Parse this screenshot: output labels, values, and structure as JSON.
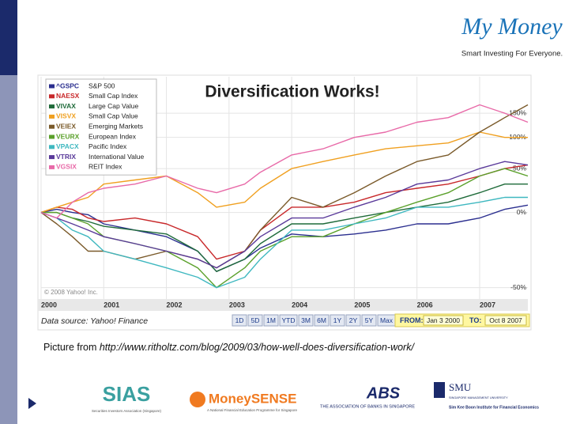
{
  "branding": {
    "logo": "My Money",
    "tagline": "Smart Investing For Everyone."
  },
  "chart_data": {
    "type": "line",
    "title": "Diversification Works!",
    "copyright": "© 2008 Yahoo! Inc.",
    "source": "Data source: Yahoo! Finance",
    "log_scale": true,
    "grid": true,
    "legend": "upper left",
    "x": [
      2000,
      2000.25,
      2000.5,
      2000.75,
      2001,
      2001.5,
      2002,
      2002.5,
      2002.8,
      2003.25,
      2003.5,
      2004,
      2004.5,
      2005,
      2005.5,
      2006,
      2006.5,
      2007,
      2007.4,
      2007.77
    ],
    "xlim": [
      2000,
      2007.77
    ],
    "xticks": [
      2000,
      2001,
      2002,
      2003,
      2004,
      2005,
      2006,
      2007
    ],
    "ylim": [
      -55,
      250
    ],
    "yticks": [
      {
        "value": -50,
        "label": "-50%"
      },
      {
        "value": 0,
        "label": "0%"
      },
      {
        "value": 50,
        "label": "50%"
      },
      {
        "value": 100,
        "label": "100%"
      },
      {
        "value": 150,
        "label": "150%"
      }
    ],
    "series": [
      {
        "ticker": "^GSPC",
        "name": "S&P 500",
        "color": "#2b2f8f",
        "values": [
          0,
          3,
          0,
          -2,
          -10,
          -15,
          -20,
          -30,
          -42,
          -35,
          -28,
          -18,
          -20,
          -18,
          -15,
          -10,
          -10,
          -5,
          3,
          7
        ]
      },
      {
        "ticker": "NAESX",
        "name": "Small Cap Index",
        "color": "#c8282a",
        "values": [
          0,
          5,
          3,
          -5,
          -8,
          -5,
          -10,
          -20,
          -35,
          -30,
          -15,
          5,
          5,
          10,
          20,
          25,
          30,
          40,
          50,
          55
        ]
      },
      {
        "ticker": "VIVAX",
        "name": "Large Cap Value",
        "color": "#1f6b3a",
        "values": [
          0,
          0,
          -5,
          -8,
          -12,
          -15,
          -18,
          -30,
          -42,
          -35,
          -25,
          -10,
          -10,
          -5,
          0,
          5,
          10,
          20,
          30,
          30
        ]
      },
      {
        "ticker": "VISVX",
        "name": "Small Cap Value",
        "color": "#f0a020",
        "values": [
          0,
          5,
          10,
          15,
          30,
          35,
          40,
          20,
          5,
          10,
          25,
          50,
          60,
          70,
          80,
          85,
          90,
          110,
          100,
          100
        ]
      },
      {
        "ticker": "VEIEX",
        "name": "Emerging Markets",
        "color": "#7a5a2a",
        "values": [
          0,
          -10,
          -20,
          -30,
          -30,
          -35,
          -30,
          -35,
          -40,
          -30,
          -15,
          15,
          5,
          20,
          40,
          60,
          70,
          110,
          140,
          170
        ]
      },
      {
        "ticker": "VEURX",
        "name": "European Index",
        "color": "#5aa02a",
        "values": [
          0,
          0,
          -5,
          -10,
          -20,
          -25,
          -30,
          -40,
          -50,
          -40,
          -30,
          -20,
          -20,
          -10,
          0,
          10,
          20,
          40,
          50,
          40
        ]
      },
      {
        "ticker": "VPACX",
        "name": "Pacific Index",
        "color": "#3fb8c0",
        "values": [
          0,
          -5,
          -15,
          -20,
          -30,
          -35,
          -40,
          -45,
          -50,
          -45,
          -35,
          -15,
          -15,
          -10,
          -5,
          5,
          5,
          10,
          15,
          15
        ]
      },
      {
        "ticker": "VTRIX",
        "name": "International Value",
        "color": "#5a3a9a",
        "values": [
          0,
          -5,
          -10,
          -15,
          -20,
          -25,
          -30,
          -35,
          -40,
          -30,
          -20,
          -5,
          -5,
          5,
          15,
          30,
          35,
          50,
          60,
          55
        ]
      },
      {
        "ticker": "VGSIX",
        "name": "REIT Index",
        "color": "#e86aa8",
        "values": [
          0,
          -5,
          10,
          20,
          25,
          30,
          40,
          25,
          20,
          30,
          45,
          70,
          80,
          100,
          110,
          130,
          140,
          170,
          150,
          130
        ]
      }
    ],
    "ranges": [
      "1D",
      "5D",
      "1M",
      "YTD",
      "3M",
      "6M",
      "1Y",
      "2Y",
      "5Y",
      "Max"
    ],
    "from_label": "FROM:",
    "from_date": "Jan 3 2000",
    "to_label": "TO:",
    "to_date": "Oct 8 2007"
  },
  "caption": {
    "prefix": "Picture from ",
    "url": "http://www.ritholtz.com/blog/2009/03/how-well-does-diversification-work/"
  },
  "footer": {
    "sias": "SIAS",
    "sias_sub": "Securities Investors Association (Singapore)",
    "moneysense": "MoneySENSE",
    "moneysense_sub": "A National Financial Education Programme for Singapore",
    "abs": "ABS",
    "abs_sub": "THE ASSOCIATION OF BANKS IN SINGAPORE",
    "smu": "SMU",
    "smu_sub": "SINGAPORE MANAGEMENT UNIVERSITY",
    "smu_inst": "Sim Kee Boon Institute for Financial Economics"
  }
}
